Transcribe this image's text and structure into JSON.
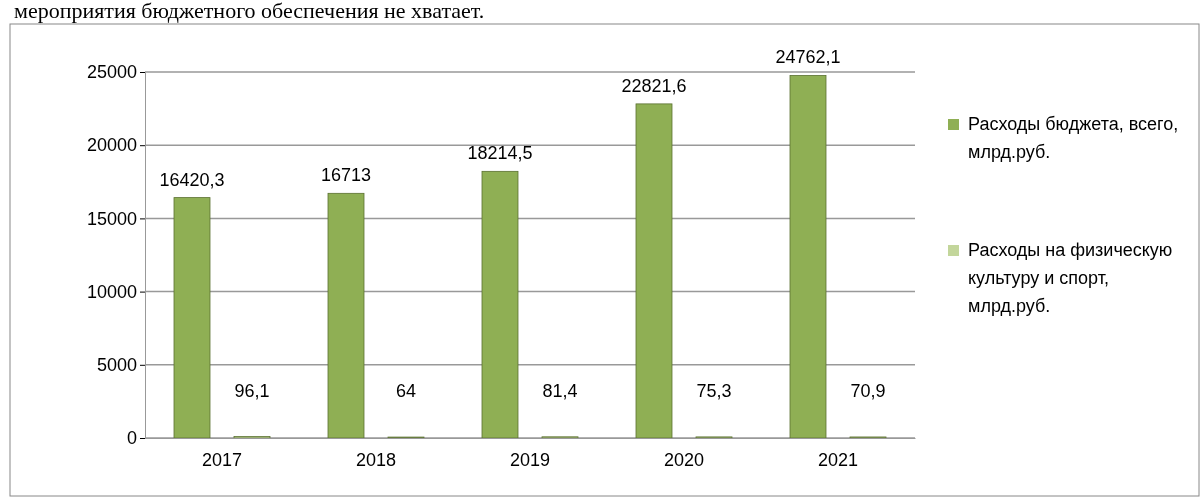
{
  "chart_data": {
    "type": "bar",
    "categories": [
      "2017",
      "2018",
      "2019",
      "2020",
      "2021"
    ],
    "series": [
      {
        "name": "Расходы бюджета, всего, млрд.руб.",
        "color": "#8faf54",
        "values": [
          16420.3,
          16713,
          18214.5,
          22821.6,
          24762.1
        ],
        "value_labels": [
          "16420,3",
          "16713",
          "18214,5",
          "22821,6",
          "24762,1"
        ]
      },
      {
        "name": "Расходы на физическую культуру и спорт, млрд.руб.",
        "color": "#c3d69b",
        "values": [
          96.1,
          64,
          81.4,
          75.3,
          70.9
        ],
        "value_labels": [
          "96,1",
          "64",
          "81,4",
          "75,3",
          "70,9"
        ]
      }
    ],
    "ylim": [
      0,
      25000
    ],
    "yticks": [
      0,
      5000,
      10000,
      15000,
      20000,
      25000
    ],
    "grid": "y",
    "legend": "right",
    "annotations": [
      "мероприятия бюджетного обеспечения не хватает."
    ]
  }
}
